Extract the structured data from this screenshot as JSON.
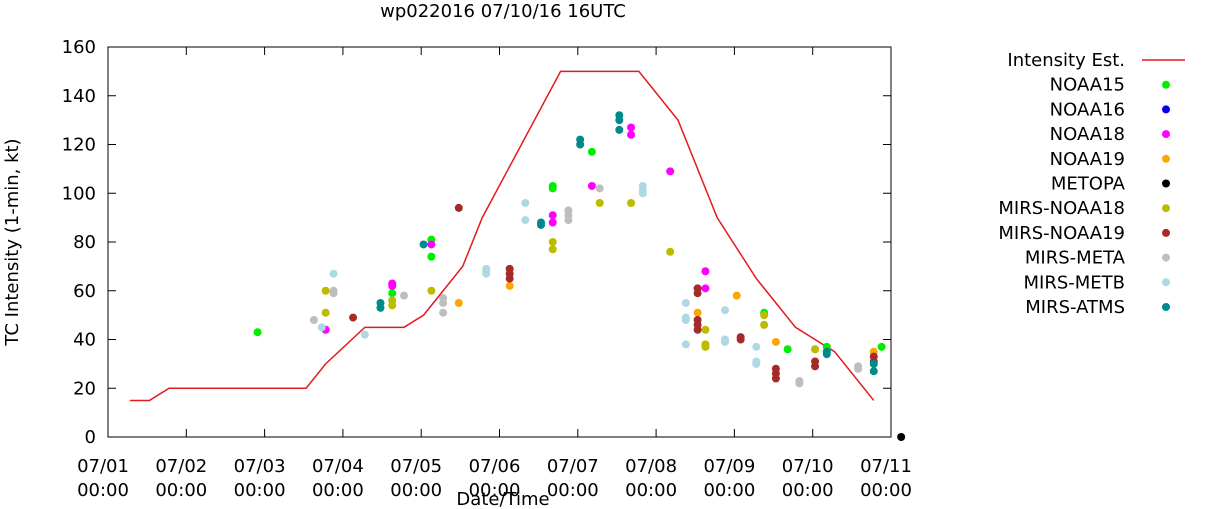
{
  "chart_data": {
    "type": "scatter",
    "title": "wp022016 07/10/16 16UTC",
    "xlabel": "Date/Time",
    "ylabel": "TC Intensity (1-min, kt)",
    "ylim": [
      0,
      160
    ],
    "xlim": [
      0,
      10
    ],
    "yticks": [
      0,
      20,
      40,
      60,
      80,
      100,
      120,
      140,
      160
    ],
    "xticks": [
      {
        "value": 0,
        "line1": "07/01",
        "line2": "00:00"
      },
      {
        "value": 1,
        "line1": "07/02",
        "line2": "00:00"
      },
      {
        "value": 2,
        "line1": "07/03",
        "line2": "00:00"
      },
      {
        "value": 3,
        "line1": "07/04",
        "line2": "00:00"
      },
      {
        "value": 4,
        "line1": "07/05",
        "line2": "00:00"
      },
      {
        "value": 5,
        "line1": "07/06",
        "line2": "00:00"
      },
      {
        "value": 6,
        "line1": "07/07",
        "line2": "00:00"
      },
      {
        "value": 7,
        "line1": "07/08",
        "line2": "00:00"
      },
      {
        "value": 8,
        "line1": "07/09",
        "line2": "00:00"
      },
      {
        "value": 9,
        "line1": "07/10",
        "line2": "00:00"
      },
      {
        "value": 10,
        "line1": "07/11",
        "line2": "00:00"
      }
    ],
    "grid": false,
    "legend_position": "right",
    "line_series": {
      "name": "Intensity Est.",
      "color": "#e41a1c",
      "x": [
        0.0,
        0.25,
        0.5,
        1.0,
        1.5,
        2.25,
        2.5,
        3.0,
        3.5,
        3.75,
        4.0,
        4.25,
        4.5,
        5.0,
        5.5,
        6.0,
        6.5,
        6.75,
        7.0,
        7.5,
        8.0,
        8.5,
        9.0,
        9.5
      ],
      "y": [
        15,
        15,
        20,
        20,
        20,
        20,
        30,
        45,
        45,
        50,
        60,
        70,
        90,
        120,
        150,
        150,
        150,
        140,
        130,
        90,
        65,
        45,
        35,
        15
      ]
    },
    "series": [
      {
        "name": "NOAA15",
        "color": "#00ee00",
        "points": [
          [
            1.63,
            43
          ],
          [
            3.35,
            59
          ],
          [
            3.85,
            81
          ],
          [
            3.85,
            74
          ],
          [
            5.4,
            103
          ],
          [
            5.4,
            102
          ],
          [
            5.9,
            117
          ],
          [
            8.1,
            51
          ],
          [
            8.4,
            36
          ],
          [
            8.9,
            37
          ],
          [
            8.9,
            35
          ],
          [
            9.6,
            37
          ]
        ]
      },
      {
        "name": "NOAA16",
        "color": "#0000ee",
        "points": []
      },
      {
        "name": "NOAA18",
        "color": "#ff00ff",
        "points": [
          [
            2.5,
            44
          ],
          [
            3.35,
            63
          ],
          [
            3.35,
            62
          ],
          [
            3.85,
            79
          ],
          [
            5.4,
            91
          ],
          [
            5.4,
            88
          ],
          [
            5.9,
            103
          ],
          [
            6.4,
            127
          ],
          [
            6.4,
            124
          ],
          [
            6.9,
            109
          ],
          [
            7.35,
            68
          ],
          [
            7.35,
            61
          ]
        ]
      },
      {
        "name": "NOAA19",
        "color": "#ffa500",
        "points": [
          [
            4.2,
            55
          ],
          [
            4.85,
            62
          ],
          [
            7.25,
            51
          ],
          [
            7.75,
            58
          ],
          [
            8.25,
            39
          ],
          [
            8.75,
            36
          ],
          [
            9.5,
            35
          ]
        ]
      },
      {
        "name": "METOPA",
        "color": "#000000",
        "points": [
          [
            9.85,
            0
          ]
        ]
      },
      {
        "name": "MIRS-NOAA18",
        "color": "#bbbb00",
        "points": [
          [
            2.5,
            60
          ],
          [
            2.5,
            51
          ],
          [
            3.35,
            56
          ],
          [
            3.35,
            54
          ],
          [
            3.85,
            60
          ],
          [
            5.4,
            80
          ],
          [
            5.4,
            77
          ],
          [
            6.0,
            96
          ],
          [
            6.4,
            96
          ],
          [
            6.9,
            76
          ],
          [
            7.35,
            44
          ],
          [
            7.35,
            38
          ],
          [
            7.35,
            37
          ],
          [
            8.1,
            50
          ],
          [
            8.1,
            46
          ],
          [
            8.75,
            36
          ]
        ]
      },
      {
        "name": "MIRS-NOAA19",
        "color": "#a52a2a",
        "points": [
          [
            2.85,
            49
          ],
          [
            4.2,
            94
          ],
          [
            4.85,
            69
          ],
          [
            4.85,
            67
          ],
          [
            4.85,
            65
          ],
          [
            7.25,
            61
          ],
          [
            7.25,
            59
          ],
          [
            7.25,
            48
          ],
          [
            7.25,
            46
          ],
          [
            7.25,
            44
          ],
          [
            7.8,
            41
          ],
          [
            7.8,
            40
          ],
          [
            8.25,
            28
          ],
          [
            8.25,
            26
          ],
          [
            8.25,
            24
          ],
          [
            8.75,
            31
          ],
          [
            8.75,
            29
          ],
          [
            9.5,
            33
          ],
          [
            9.5,
            31
          ]
        ]
      },
      {
        "name": "MIRS-META",
        "color": "#bebebe",
        "points": [
          [
            2.35,
            48
          ],
          [
            2.6,
            60
          ],
          [
            2.6,
            59
          ],
          [
            3.5,
            58
          ],
          [
            4.0,
            57
          ],
          [
            4.0,
            55
          ],
          [
            4.0,
            51
          ],
          [
            5.6,
            93
          ],
          [
            5.6,
            91
          ],
          [
            5.6,
            89
          ],
          [
            6.0,
            102
          ],
          [
            8.55,
            23
          ],
          [
            8.55,
            22
          ],
          [
            9.3,
            29
          ],
          [
            9.3,
            28
          ]
        ]
      },
      {
        "name": "MIRS-METB",
        "color": "#add8e6",
        "points": [
          [
            2.45,
            45
          ],
          [
            2.6,
            67
          ],
          [
            3.0,
            42
          ],
          [
            4.55,
            69
          ],
          [
            4.55,
            68
          ],
          [
            4.55,
            67
          ],
          [
            5.05,
            96
          ],
          [
            5.05,
            89
          ],
          [
            6.55,
            103
          ],
          [
            6.55,
            101
          ],
          [
            6.55,
            100
          ],
          [
            7.1,
            55
          ],
          [
            7.1,
            49
          ],
          [
            7.1,
            48
          ],
          [
            7.1,
            38
          ],
          [
            7.6,
            52
          ],
          [
            7.6,
            40
          ],
          [
            7.6,
            39
          ],
          [
            8.0,
            37
          ],
          [
            8.0,
            31
          ],
          [
            8.0,
            30
          ]
        ]
      },
      {
        "name": "MIRS-ATMS",
        "color": "#008b8b",
        "points": [
          [
            3.2,
            55
          ],
          [
            3.2,
            53
          ],
          [
            3.75,
            79
          ],
          [
            5.25,
            88
          ],
          [
            5.25,
            87
          ],
          [
            5.75,
            122
          ],
          [
            5.75,
            120
          ],
          [
            6.25,
            132
          ],
          [
            6.25,
            130
          ],
          [
            6.25,
            126
          ],
          [
            8.9,
            35
          ],
          [
            8.9,
            34
          ],
          [
            9.5,
            30
          ],
          [
            9.5,
            27
          ]
        ]
      }
    ]
  }
}
